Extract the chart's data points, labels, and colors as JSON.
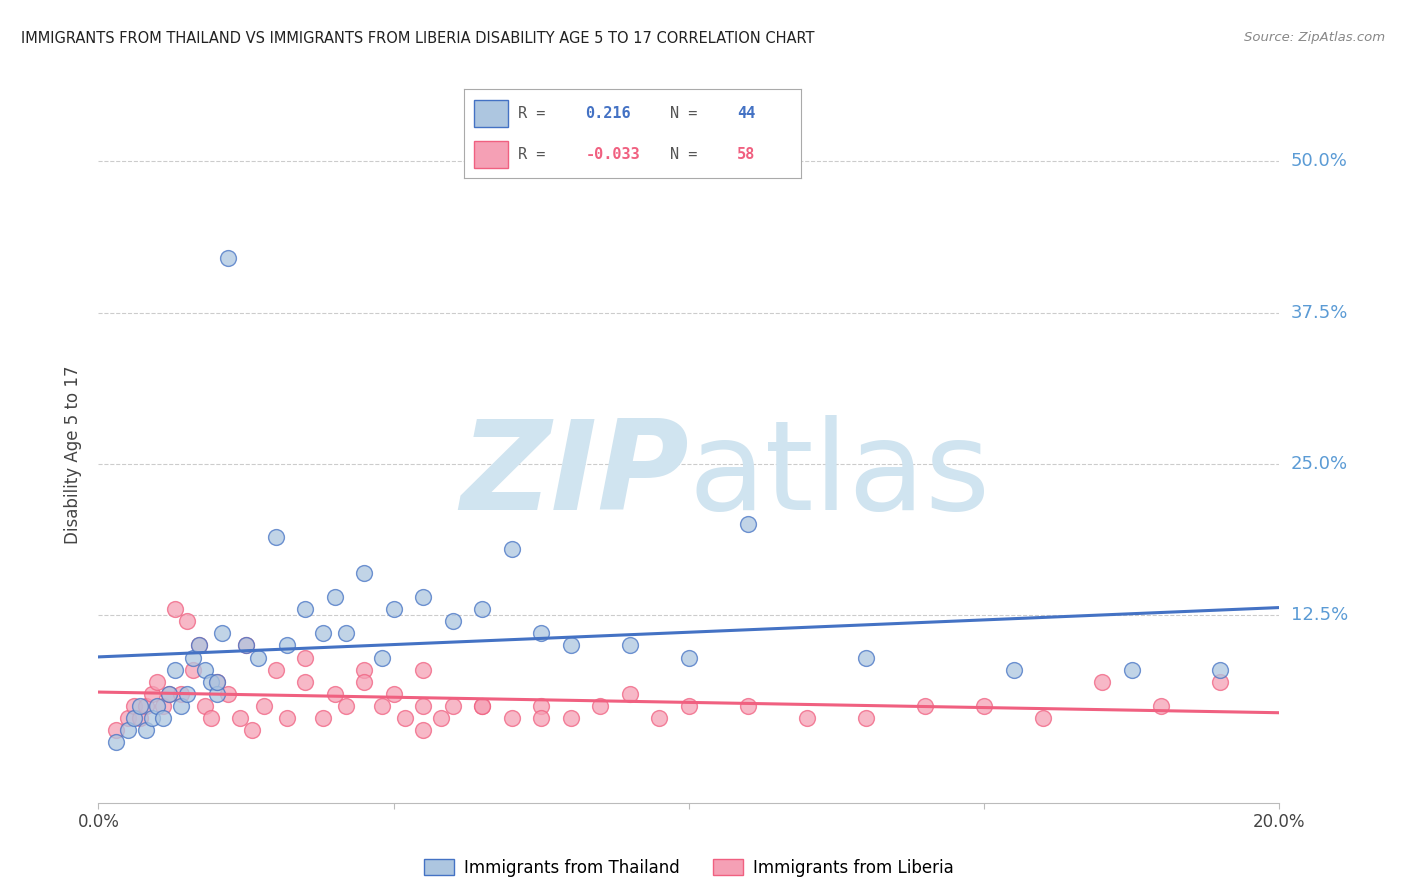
{
  "title": "IMMIGRANTS FROM THAILAND VS IMMIGRANTS FROM LIBERIA DISABILITY AGE 5 TO 17 CORRELATION CHART",
  "source": "Source: ZipAtlas.com",
  "ylabel": "Disability Age 5 to 17",
  "ytick_labels": [
    "50.0%",
    "37.5%",
    "25.0%",
    "12.5%"
  ],
  "ytick_values": [
    0.5,
    0.375,
    0.25,
    0.125
  ],
  "xlim": [
    0.0,
    0.2
  ],
  "ylim": [
    -0.03,
    0.545
  ],
  "legend_thailand": "Immigrants from Thailand",
  "legend_liberia": "Immigrants from Liberia",
  "R_thailand": "0.216",
  "N_thailand": "44",
  "R_liberia": "-0.033",
  "N_liberia": "58",
  "color_thailand": "#adc6e0",
  "color_liberia": "#f5a0b5",
  "color_line_thailand": "#4472c4",
  "color_line_liberia": "#f06080",
  "color_ytick_label": "#5b9bd5",
  "background_color": "#ffffff",
  "grid_color": "#cccccc",
  "watermark_zip": "ZIP",
  "watermark_atlas": "atlas",
  "watermark_color": "#d0e4f0",
  "thailand_x": [
    0.003,
    0.005,
    0.006,
    0.007,
    0.008,
    0.009,
    0.01,
    0.011,
    0.012,
    0.013,
    0.014,
    0.015,
    0.016,
    0.017,
    0.018,
    0.019,
    0.02,
    0.021,
    0.022,
    0.025,
    0.027,
    0.03,
    0.032,
    0.035,
    0.038,
    0.04,
    0.042,
    0.045,
    0.048,
    0.05,
    0.055,
    0.06,
    0.065,
    0.07,
    0.075,
    0.08,
    0.09,
    0.1,
    0.11,
    0.13,
    0.155,
    0.175,
    0.19,
    0.02
  ],
  "thailand_y": [
    0.02,
    0.03,
    0.04,
    0.05,
    0.03,
    0.04,
    0.05,
    0.04,
    0.06,
    0.08,
    0.05,
    0.06,
    0.09,
    0.1,
    0.08,
    0.07,
    0.06,
    0.11,
    0.42,
    0.1,
    0.09,
    0.19,
    0.1,
    0.13,
    0.11,
    0.14,
    0.11,
    0.16,
    0.09,
    0.13,
    0.14,
    0.12,
    0.13,
    0.18,
    0.11,
    0.1,
    0.1,
    0.09,
    0.2,
    0.09,
    0.08,
    0.08,
    0.08,
    0.07
  ],
  "liberia_x": [
    0.003,
    0.005,
    0.006,
    0.007,
    0.008,
    0.009,
    0.01,
    0.011,
    0.012,
    0.013,
    0.014,
    0.015,
    0.016,
    0.017,
    0.018,
    0.019,
    0.02,
    0.022,
    0.024,
    0.026,
    0.028,
    0.03,
    0.032,
    0.035,
    0.038,
    0.04,
    0.042,
    0.045,
    0.048,
    0.05,
    0.052,
    0.055,
    0.058,
    0.06,
    0.065,
    0.07,
    0.075,
    0.08,
    0.085,
    0.09,
    0.095,
    0.1,
    0.11,
    0.12,
    0.13,
    0.14,
    0.15,
    0.16,
    0.17,
    0.18,
    0.19,
    0.025,
    0.035,
    0.045,
    0.055,
    0.065,
    0.075,
    0.055
  ],
  "liberia_y": [
    0.03,
    0.04,
    0.05,
    0.04,
    0.05,
    0.06,
    0.07,
    0.05,
    0.06,
    0.13,
    0.06,
    0.12,
    0.08,
    0.1,
    0.05,
    0.04,
    0.07,
    0.06,
    0.04,
    0.03,
    0.05,
    0.08,
    0.04,
    0.07,
    0.04,
    0.06,
    0.05,
    0.08,
    0.05,
    0.06,
    0.04,
    0.08,
    0.04,
    0.05,
    0.05,
    0.04,
    0.05,
    0.04,
    0.05,
    0.06,
    0.04,
    0.05,
    0.05,
    0.04,
    0.04,
    0.05,
    0.05,
    0.04,
    0.07,
    0.05,
    0.07,
    0.1,
    0.09,
    0.07,
    0.05,
    0.05,
    0.04,
    0.03
  ]
}
